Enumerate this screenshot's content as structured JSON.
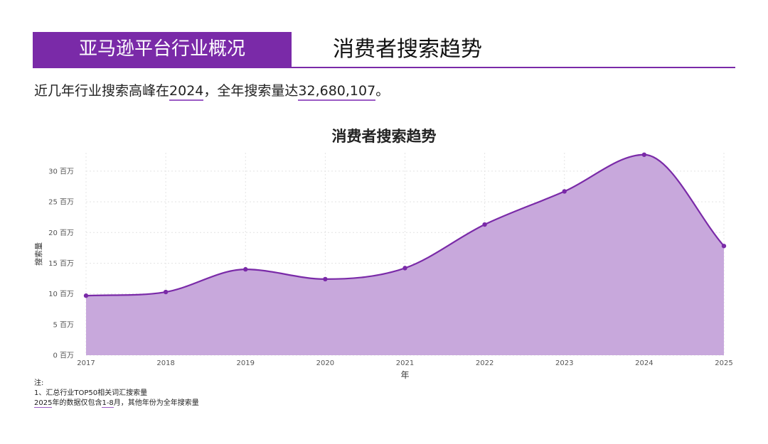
{
  "header": {
    "tag": "亚马逊平台行业概况",
    "title": "消费者搜索趋势"
  },
  "summary": {
    "prefix": "近几年行业搜索高峰在",
    "peak_year": "2024",
    "middle": "，全年搜索量达",
    "peak_value": "32,680,107",
    "suffix": "。"
  },
  "notes": {
    "heading": "注:",
    "line1": "1、汇总行业TOP50相关词汇搜索量",
    "line2_year": "2025",
    "line2_mid": "年的数据仅包含",
    "line2_months": "1-8",
    "line2_rest": "月，其他年份为全年搜索量"
  },
  "colors": {
    "accent": "#7a2aa8",
    "area_fill": "#c8a8dc",
    "line": "#7a2aa8"
  },
  "chart_data": {
    "type": "area",
    "title": "消费者搜索趋势",
    "xlabel": "年",
    "ylabel": "搜索量",
    "x": [
      "2017",
      "2018",
      "2019",
      "2020",
      "2021",
      "2022",
      "2023",
      "2024",
      "2025"
    ],
    "values": [
      9700000,
      10300000,
      14000000,
      12400000,
      14200000,
      21300000,
      26700000,
      32680107,
      17800000
    ],
    "ylim": [
      0,
      33000000
    ],
    "yticks": [
      0,
      5000000,
      10000000,
      15000000,
      20000000,
      25000000,
      30000000
    ],
    "ytick_labels": [
      "0 百万",
      "5 百万",
      "10 百万",
      "15 百万",
      "20 百万",
      "25 百万",
      "30 百万"
    ],
    "grid": true,
    "smooth": true
  }
}
